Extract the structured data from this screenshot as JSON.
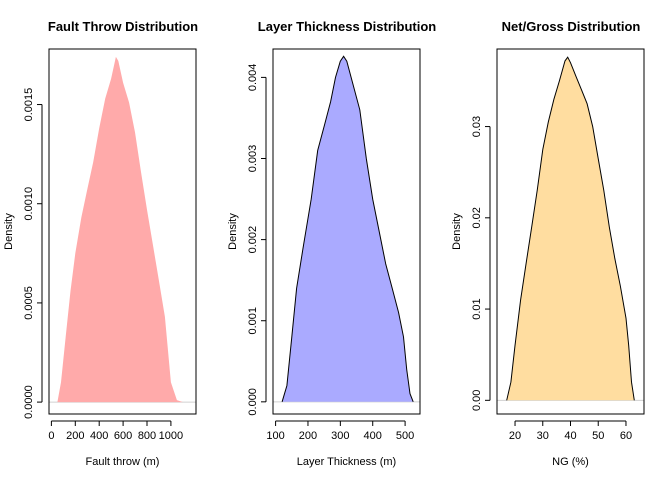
{
  "chart_data": [
    {
      "type": "area",
      "title": "Fault Throw Distribution",
      "xlabel": "Fault throw (m)",
      "ylabel": "Density",
      "fill": "#FFAAAA",
      "outline": "none",
      "xlim": [
        -20,
        1210
      ],
      "ylim": [
        -6e-05,
        0.00178
      ],
      "xticks": [
        0,
        200,
        400,
        600,
        800,
        1000
      ],
      "xticklabels": [
        "0",
        "200",
        "400",
        "600",
        "800",
        "1000"
      ],
      "yticks": [
        0.0,
        0.0005,
        0.001,
        0.0015
      ],
      "yticklabels": [
        "0.0000",
        "0.0005",
        "0.0010",
        "0.0015"
      ],
      "x": [
        50,
        80,
        120,
        160,
        200,
        250,
        300,
        350,
        400,
        450,
        500,
        540,
        560,
        600,
        650,
        700,
        750,
        800,
        850,
        900,
        950,
        1000,
        1050,
        1100
      ],
      "y": [
        0.0,
        0.0001,
        0.00033,
        0.00056,
        0.00075,
        0.00093,
        0.00107,
        0.00121,
        0.00138,
        0.00153,
        0.00163,
        0.00174,
        0.00172,
        0.00161,
        0.00151,
        0.00136,
        0.00116,
        0.00097,
        0.00079,
        0.00061,
        0.00043,
        0.0001,
        1e-05,
        0.0
      ]
    },
    {
      "type": "area",
      "title": "Layer Thickness Distribution",
      "xlabel": "Layer Thickness (m)",
      "ylabel": "Density",
      "fill": "#AAAAFF",
      "outline": "#000000",
      "xlim": [
        92,
        546
      ],
      "ylim": [
        -0.00015,
        0.00435
      ],
      "xticks": [
        100,
        200,
        300,
        400,
        500
      ],
      "xticklabels": [
        "100",
        "200",
        "300",
        "400",
        "500"
      ],
      "yticks": [
        0.0,
        0.001,
        0.002,
        0.003,
        0.004
      ],
      "yticklabels": [
        "0.000",
        "0.001",
        "0.002",
        "0.003",
        "0.004"
      ],
      "x": [
        120,
        135,
        150,
        165,
        185,
        210,
        230,
        250,
        270,
        285,
        300,
        310,
        320,
        340,
        360,
        380,
        400,
        420,
        440,
        460,
        480,
        495,
        505,
        515,
        525
      ],
      "y": [
        0.0,
        0.0002,
        0.0008,
        0.0014,
        0.0019,
        0.0025,
        0.0031,
        0.0034,
        0.0037,
        0.004,
        0.0042,
        0.00426,
        0.0042,
        0.0039,
        0.0036,
        0.003,
        0.0025,
        0.0021,
        0.0017,
        0.0014,
        0.0011,
        0.0008,
        0.0004,
        0.0001,
        0.0
      ]
    },
    {
      "type": "area",
      "title": "Net/Gross Distribution",
      "xlabel": "NG (%)",
      "ylabel": "Density",
      "fill": "#FFDDA0",
      "outline": "#000000",
      "xlim": [
        13.5,
        66.5
      ],
      "ylim": [
        -0.0015,
        0.0385
      ],
      "xticks": [
        20,
        30,
        40,
        50,
        60
      ],
      "xticklabels": [
        "20",
        "30",
        "40",
        "50",
        "60"
      ],
      "yticks": [
        0.0,
        0.01,
        0.02,
        0.03
      ],
      "yticklabels": [
        "0.00",
        "0.01",
        "0.02",
        "0.03"
      ],
      "x": [
        17,
        18.5,
        20,
        22,
        24,
        26,
        28,
        30,
        32,
        34,
        36,
        38,
        39,
        40,
        42,
        44,
        46,
        48,
        50,
        52,
        54,
        56,
        58,
        60,
        61,
        62,
        63
      ],
      "y": [
        0.0,
        0.002,
        0.006,
        0.011,
        0.015,
        0.019,
        0.023,
        0.0275,
        0.0305,
        0.033,
        0.035,
        0.0372,
        0.0376,
        0.037,
        0.0355,
        0.034,
        0.0325,
        0.03,
        0.0265,
        0.023,
        0.019,
        0.0155,
        0.0125,
        0.009,
        0.006,
        0.002,
        0.0
      ]
    }
  ]
}
